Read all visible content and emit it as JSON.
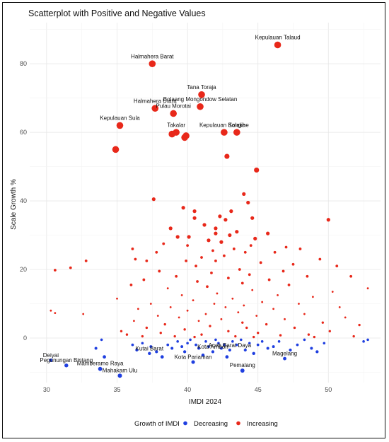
{
  "chart_data": {
    "type": "scatter",
    "title": "Scatterplot with Positive and Negative Values",
    "xlabel": "IMDI 2024",
    "ylabel": "Scale Growth %",
    "xlim": [
      28.8,
      53.7
    ],
    "ylim": [
      -13,
      92
    ],
    "x_ticks": [
      30,
      35,
      40,
      45,
      50
    ],
    "y_ticks": [
      0,
      20,
      40,
      60,
      80
    ],
    "grid": true,
    "legend": {
      "title": "Growth of IMDI",
      "position": "bottom",
      "entries": [
        {
          "label": "Decreasing",
          "color": "#1f3fe0"
        },
        {
          "label": "Increasing",
          "color": "#e8281a"
        }
      ]
    },
    "series": [
      {
        "name": "Decreasing",
        "color": "#1f3fe0",
        "points": [
          {
            "x": 30.3,
            "y": -6.5,
            "label": "Deiyai"
          },
          {
            "x": 31.4,
            "y": -8.0,
            "label": "Pegunungan Bintang"
          },
          {
            "x": 33.8,
            "y": -9.0,
            "label": "Mamberamo Raya"
          },
          {
            "x": 35.2,
            "y": -11.0,
            "label": "Mahakam Ulu"
          },
          {
            "x": 37.3,
            "y": -4.5,
            "label": "Kutai Barat"
          },
          {
            "x": 40.4,
            "y": -7.0,
            "label": "Kota Pariaman"
          },
          {
            "x": 41.8,
            "y": -4.0,
            "label": "Kota Ambon"
          },
          {
            "x": 43.0,
            "y": -3.5,
            "label": "Aceh Barat Daya"
          },
          {
            "x": 43.9,
            "y": -9.5,
            "label": "Pemalang"
          },
          {
            "x": 46.9,
            "y": -6.0,
            "label": "Magelang"
          },
          {
            "x": 33.5,
            "y": -3.0
          },
          {
            "x": 33.9,
            "y": -0.5
          },
          {
            "x": 34.1,
            "y": -5.5
          },
          {
            "x": 36.1,
            "y": -2.0
          },
          {
            "x": 36.4,
            "y": -3.5
          },
          {
            "x": 36.8,
            "y": -1.5
          },
          {
            "x": 37.4,
            "y": -2.5
          },
          {
            "x": 37.8,
            "y": -4.0
          },
          {
            "x": 38.2,
            "y": -5.5
          },
          {
            "x": 38.6,
            "y": -2.0
          },
          {
            "x": 38.9,
            "y": -3.0
          },
          {
            "x": 39.3,
            "y": -1.0
          },
          {
            "x": 39.6,
            "y": -2.5
          },
          {
            "x": 39.8,
            "y": -4.0
          },
          {
            "x": 40.0,
            "y": -1.5
          },
          {
            "x": 40.2,
            "y": -0.5
          },
          {
            "x": 40.6,
            "y": -2.0
          },
          {
            "x": 40.8,
            "y": -3.0
          },
          {
            "x": 41.1,
            "y": -5.0
          },
          {
            "x": 41.3,
            "y": -1.0
          },
          {
            "x": 41.5,
            "y": -2.5
          },
          {
            "x": 42.0,
            "y": -0.5
          },
          {
            "x": 42.2,
            "y": -1.5
          },
          {
            "x": 42.4,
            "y": -3.0
          },
          {
            "x": 42.6,
            "y": -2.0
          },
          {
            "x": 42.8,
            "y": -5.5
          },
          {
            "x": 43.2,
            "y": -1.0
          },
          {
            "x": 43.5,
            "y": -2.0
          },
          {
            "x": 43.8,
            "y": -0.5
          },
          {
            "x": 44.1,
            "y": -3.5
          },
          {
            "x": 44.4,
            "y": -1.5
          },
          {
            "x": 44.7,
            "y": -4.5
          },
          {
            "x": 45.0,
            "y": -2.0
          },
          {
            "x": 45.3,
            "y": -1.0
          },
          {
            "x": 45.7,
            "y": -3.0
          },
          {
            "x": 46.1,
            "y": -2.5
          },
          {
            "x": 46.5,
            "y": -1.0
          },
          {
            "x": 47.3,
            "y": -3.5
          },
          {
            "x": 47.8,
            "y": -2.0
          },
          {
            "x": 48.3,
            "y": -0.5
          },
          {
            "x": 48.8,
            "y": -3.0
          },
          {
            "x": 49.2,
            "y": -4.0
          },
          {
            "x": 49.7,
            "y": -1.5
          },
          {
            "x": 52.5,
            "y": -1.0
          },
          {
            "x": 52.8,
            "y": -0.5
          }
        ]
      },
      {
        "name": "Increasing",
        "color": "#e8281a",
        "points": [
          {
            "x": 46.4,
            "y": 85.5,
            "label": "Kepulauan Talaud"
          },
          {
            "x": 37.5,
            "y": 80.0,
            "label": "Halmahera Barat"
          },
          {
            "x": 41.0,
            "y": 71.0,
            "label": "Tana Toraja"
          },
          {
            "x": 40.9,
            "y": 67.5,
            "label": "Bolaang Mongondow Selatan"
          },
          {
            "x": 37.7,
            "y": 67.0,
            "label": "Halmahera Utara"
          },
          {
            "x": 39.0,
            "y": 65.5,
            "label": "Pulau Morotai"
          },
          {
            "x": 35.2,
            "y": 62.0,
            "label": "Kepulauan Sula"
          },
          {
            "x": 39.2,
            "y": 60.0,
            "label": "Takalar"
          },
          {
            "x": 42.6,
            "y": 60.0,
            "label": "Kepulauan Sangihe"
          },
          {
            "x": 43.5,
            "y": 60.0,
            "label": "Kolaka"
          },
          {
            "x": 38.9,
            "y": 59.5
          },
          {
            "x": 39.8,
            "y": 58.5
          },
          {
            "x": 39.9,
            "y": 59.0
          },
          {
            "x": 34.9,
            "y": 55.0
          },
          {
            "x": 42.8,
            "y": 53.0
          },
          {
            "x": 44.9,
            "y": 49.0
          },
          {
            "x": 44.0,
            "y": 42.0
          },
          {
            "x": 37.6,
            "y": 40.5
          },
          {
            "x": 44.3,
            "y": 39.5
          },
          {
            "x": 39.7,
            "y": 38.0
          },
          {
            "x": 40.5,
            "y": 37.0
          },
          {
            "x": 43.1,
            "y": 37.0
          },
          {
            "x": 40.5,
            "y": 35.0
          },
          {
            "x": 42.3,
            "y": 35.5
          },
          {
            "x": 44.6,
            "y": 35.0
          },
          {
            "x": 50.0,
            "y": 34.5
          },
          {
            "x": 42.7,
            "y": 34.5
          },
          {
            "x": 41.2,
            "y": 33.0
          },
          {
            "x": 38.8,
            "y": 32.0
          },
          {
            "x": 42.0,
            "y": 32.0
          },
          {
            "x": 43.5,
            "y": 31.0
          },
          {
            "x": 45.7,
            "y": 30.5
          },
          {
            "x": 42.0,
            "y": 30.5
          },
          {
            "x": 40.1,
            "y": 29.5
          },
          {
            "x": 43.0,
            "y": 30.0
          },
          {
            "x": 44.8,
            "y": 29.0
          },
          {
            "x": 39.3,
            "y": 29.5
          },
          {
            "x": 41.5,
            "y": 28.5
          },
          {
            "x": 38.3,
            "y": 27.5
          },
          {
            "x": 40.0,
            "y": 27.0
          },
          {
            "x": 42.4,
            "y": 28.0
          },
          {
            "x": 44.5,
            "y": 27.0
          },
          {
            "x": 47.0,
            "y": 26.5
          },
          {
            "x": 48.0,
            "y": 26.0
          },
          {
            "x": 36.1,
            "y": 26.0
          },
          {
            "x": 43.3,
            "y": 26.0
          },
          {
            "x": 41.8,
            "y": 25.5
          },
          {
            "x": 37.8,
            "y": 25.0
          },
          {
            "x": 44.1,
            "y": 25.0
          },
          {
            "x": 46.2,
            "y": 25.0
          },
          {
            "x": 42.6,
            "y": 24.0
          },
          {
            "x": 41.0,
            "y": 23.5
          },
          {
            "x": 36.3,
            "y": 23.0
          },
          {
            "x": 49.4,
            "y": 23.0
          },
          {
            "x": 32.8,
            "y": 22.5
          },
          {
            "x": 37.1,
            "y": 22.5
          },
          {
            "x": 39.9,
            "y": 22.5
          },
          {
            "x": 42.0,
            "y": 22.5
          },
          {
            "x": 45.2,
            "y": 22.0
          },
          {
            "x": 47.5,
            "y": 21.5
          },
          {
            "x": 40.6,
            "y": 21.0
          },
          {
            "x": 31.7,
            "y": 20.5
          },
          {
            "x": 50.6,
            "y": 21.0
          },
          {
            "x": 30.6,
            "y": 19.8
          },
          {
            "x": 43.7,
            "y": 20.0
          },
          {
            "x": 38.0,
            "y": 19.5
          },
          {
            "x": 46.8,
            "y": 19.5
          },
          {
            "x": 41.7,
            "y": 19.0
          },
          {
            "x": 44.4,
            "y": 18.5
          },
          {
            "x": 39.2,
            "y": 18.0
          },
          {
            "x": 48.5,
            "y": 18.0
          },
          {
            "x": 51.6,
            "y": 18.0
          },
          {
            "x": 42.9,
            "y": 17.5
          },
          {
            "x": 36.9,
            "y": 17.0
          },
          {
            "x": 45.8,
            "y": 17.0
          },
          {
            "x": 40.7,
            "y": 16.5
          },
          {
            "x": 43.9,
            "y": 16.0
          },
          {
            "x": 36.0,
            "y": 15.5
          },
          {
            "x": 47.2,
            "y": 15.5
          },
          {
            "x": 41.4,
            "y": 15.0
          },
          {
            "x": 52.8,
            "y": 14.5
          },
          {
            "x": 38.6,
            "y": 14.5
          },
          {
            "x": 44.6,
            "y": 14.0
          },
          {
            "x": 50.3,
            "y": 13.5
          },
          {
            "x": 42.1,
            "y": 13.0
          },
          {
            "x": 39.6,
            "y": 12.5
          },
          {
            "x": 46.4,
            "y": 12.5
          },
          {
            "x": 35.0,
            "y": 11.5
          },
          {
            "x": 48.9,
            "y": 12.0
          },
          {
            "x": 43.2,
            "y": 11.5
          },
          {
            "x": 40.4,
            "y": 11.0
          },
          {
            "x": 45.3,
            "y": 10.5
          },
          {
            "x": 37.4,
            "y": 10.0
          },
          {
            "x": 41.9,
            "y": 10.0
          },
          {
            "x": 47.9,
            "y": 10.0
          },
          {
            "x": 44.0,
            "y": 9.5
          },
          {
            "x": 38.8,
            "y": 9.0
          },
          {
            "x": 42.7,
            "y": 9.0
          },
          {
            "x": 50.8,
            "y": 9.0
          },
          {
            "x": 36.5,
            "y": 8.5
          },
          {
            "x": 30.3,
            "y": 8.0
          },
          {
            "x": 46.1,
            "y": 8.5
          },
          {
            "x": 40.0,
            "y": 8.0
          },
          {
            "x": 43.6,
            "y": 7.5
          },
          {
            "x": 30.6,
            "y": 7.3
          },
          {
            "x": 32.6,
            "y": 7.0
          },
          {
            "x": 41.3,
            "y": 7.0
          },
          {
            "x": 48.3,
            "y": 7.0
          },
          {
            "x": 37.9,
            "y": 6.5
          },
          {
            "x": 44.9,
            "y": 6.5
          },
          {
            "x": 39.4,
            "y": 6.0
          },
          {
            "x": 51.2,
            "y": 6.0
          },
          {
            "x": 42.4,
            "y": 5.5
          },
          {
            "x": 46.9,
            "y": 5.5
          },
          {
            "x": 36.2,
            "y": 5.0
          },
          {
            "x": 40.8,
            "y": 5.0
          },
          {
            "x": 43.9,
            "y": 4.5
          },
          {
            "x": 49.6,
            "y": 4.5
          },
          {
            "x": 38.4,
            "y": 4.0
          },
          {
            "x": 45.6,
            "y": 4.0
          },
          {
            "x": 52.2,
            "y": 3.8
          },
          {
            "x": 41.6,
            "y": 3.5
          },
          {
            "x": 37.1,
            "y": 3.0
          },
          {
            "x": 44.2,
            "y": 3.0
          },
          {
            "x": 47.6,
            "y": 3.0
          },
          {
            "x": 35.3,
            "y": 2.0
          },
          {
            "x": 39.8,
            "y": 2.5
          },
          {
            "x": 42.9,
            "y": 2.0
          },
          {
            "x": 50.1,
            "y": 2.0
          },
          {
            "x": 35.7,
            "y": 1.0
          },
          {
            "x": 38.1,
            "y": 1.5
          },
          {
            "x": 45.0,
            "y": 1.5
          },
          {
            "x": 48.6,
            "y": 1.0
          },
          {
            "x": 41.0,
            "y": 1.0
          },
          {
            "x": 43.4,
            "y": 0.5
          },
          {
            "x": 46.6,
            "y": 0.8
          },
          {
            "x": 39.1,
            "y": 0.5
          },
          {
            "x": 36.8,
            "y": 0.5
          },
          {
            "x": 51.8,
            "y": 0.5
          },
          {
            "x": 44.7,
            "y": 0.3
          },
          {
            "x": 40.5,
            "y": 0.3
          },
          {
            "x": 49.0,
            "y": 0.3
          }
        ]
      }
    ]
  }
}
